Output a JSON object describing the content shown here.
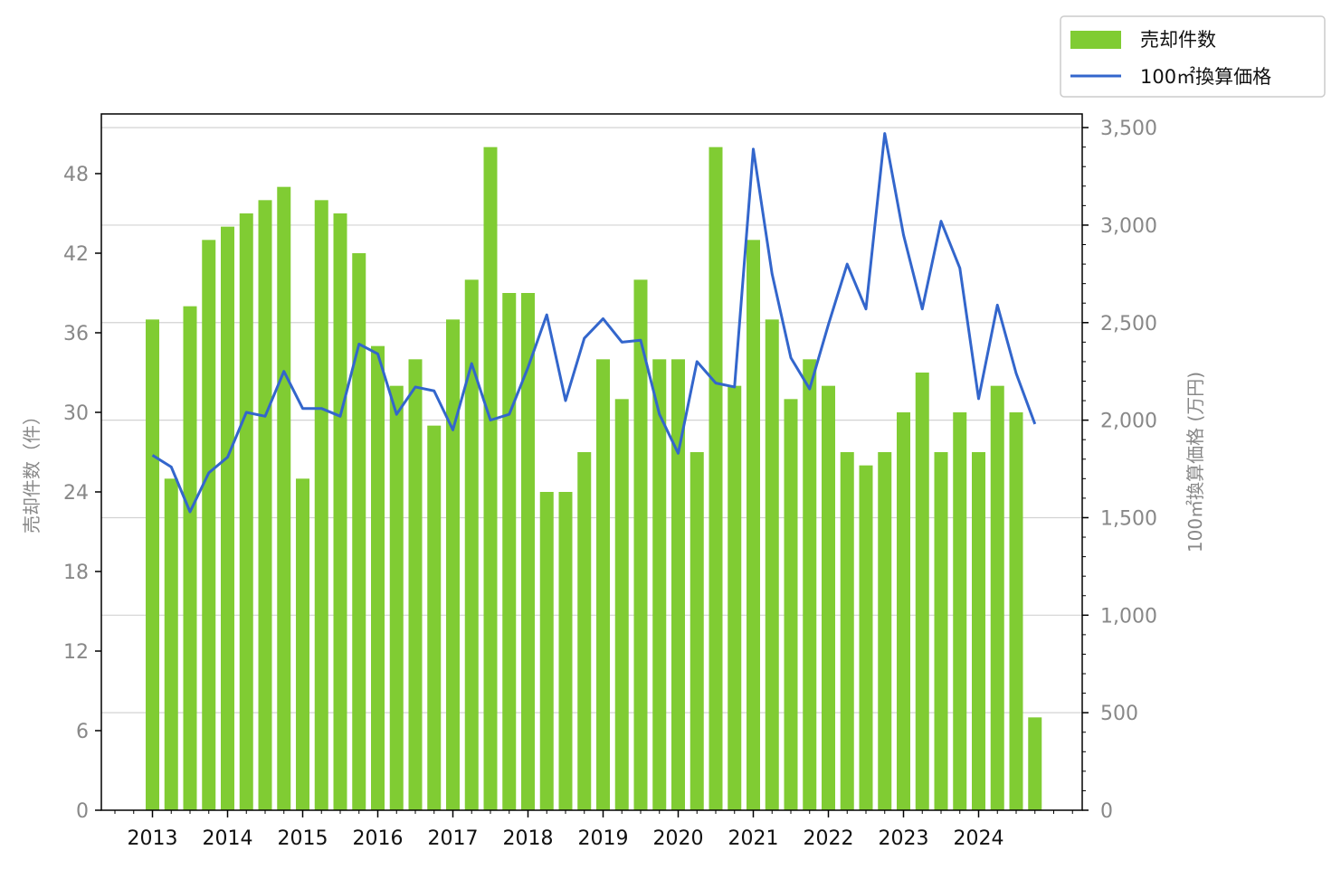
{
  "chart_data": {
    "type": "bar",
    "xticks": [
      "2013",
      "2014",
      "2015",
      "2016",
      "2017",
      "2018",
      "2019",
      "2020",
      "2021",
      "2022",
      "2023",
      "2024"
    ],
    "bar_count": 48,
    "series": [
      {
        "name": "売却件数",
        "type": "bar",
        "axis": "left",
        "color": "#80cc33",
        "values": [
          37,
          25,
          38,
          43,
          44,
          45,
          46,
          47,
          25,
          46,
          45,
          42,
          35,
          32,
          34,
          29,
          37,
          40,
          50,
          39,
          39,
          24,
          24,
          27,
          34,
          31,
          40,
          34,
          34,
          27,
          50,
          32,
          43,
          37,
          31,
          34,
          32,
          27,
          26,
          27,
          30,
          33,
          27,
          30,
          27,
          32,
          30,
          7
        ]
      },
      {
        "name": "100㎡換算価格",
        "type": "line",
        "axis": "right",
        "color": "#3366cc",
        "values": [
          1820,
          1760,
          1530,
          1730,
          1810,
          2040,
          2020,
          2250,
          2060,
          2060,
          2020,
          2390,
          2340,
          2030,
          2170,
          2150,
          1950,
          2290,
          2000,
          2030,
          2270,
          2540,
          2100,
          2420,
          2520,
          2400,
          2410,
          2030,
          1830,
          2300,
          2190,
          2170,
          3390,
          2750,
          2320,
          2160,
          2490,
          2800,
          2570,
          3470,
          2950,
          2570,
          3020,
          2780,
          2110,
          2590,
          2240,
          1980
        ]
      }
    ],
    "y_left": {
      "label": "売却件数（件）",
      "min": 0,
      "max": 52.5,
      "ticks": [
        0,
        6,
        12,
        18,
        24,
        30,
        36,
        42,
        48
      ],
      "tick_labels": [
        "0",
        "6",
        "12",
        "18",
        "24",
        "30",
        "36",
        "42",
        "48"
      ]
    },
    "y_right": {
      "label": "100㎡換算価格 (万円)",
      "min": 0,
      "max": 3570,
      "ticks": [
        0,
        500,
        1000,
        1500,
        2000,
        2500,
        3000,
        3500
      ],
      "tick_labels": [
        "0",
        "500",
        "1,000",
        "1,500",
        "2,000",
        "2,500",
        "3,000",
        "3,500"
      ]
    },
    "grid": {
      "horizontal": true,
      "axis": "right"
    },
    "legend_position": "top-right",
    "colors": {
      "bar": "#80cc33",
      "line": "#3366cc",
      "tick_label": "#888888",
      "grid": "#d3d3d3"
    }
  }
}
